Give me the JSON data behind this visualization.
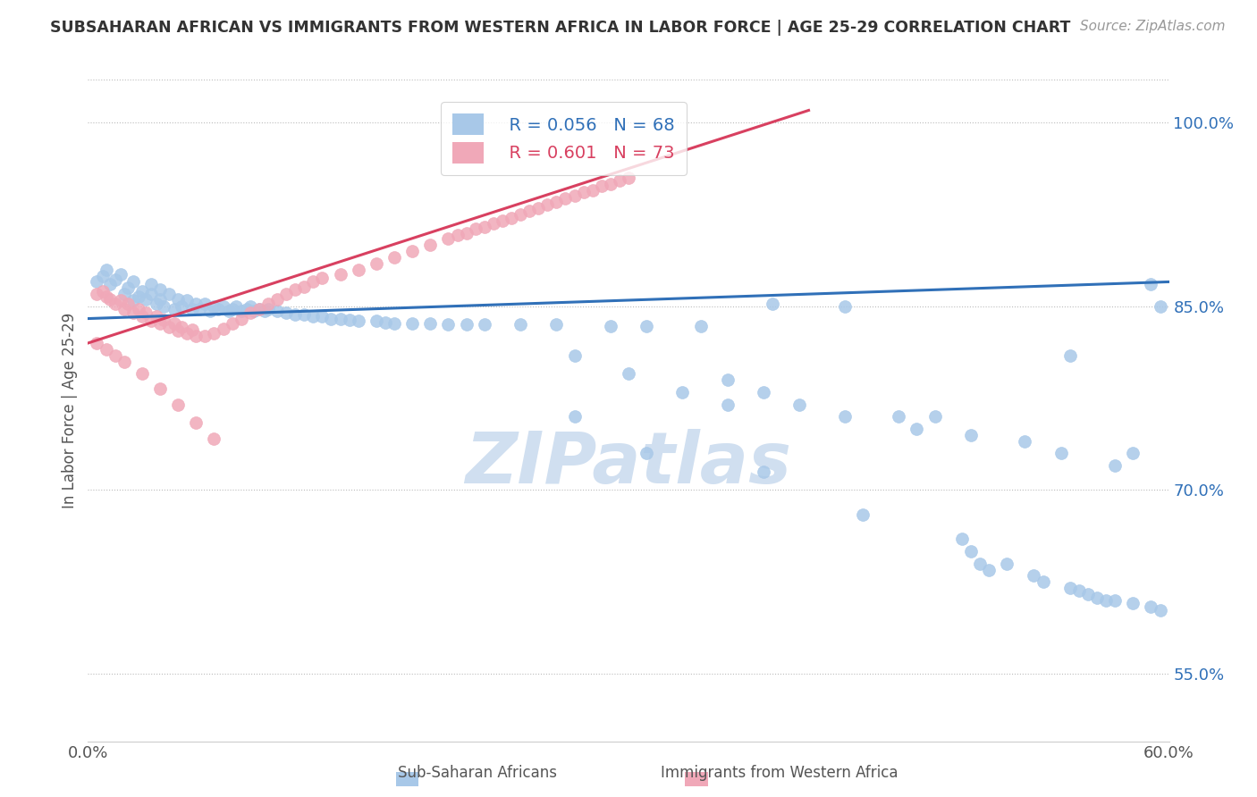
{
  "title": "SUBSAHARAN AFRICAN VS IMMIGRANTS FROM WESTERN AFRICA IN LABOR FORCE | AGE 25-29 CORRELATION CHART",
  "source": "Source: ZipAtlas.com",
  "ylabel": "In Labor Force | Age 25-29",
  "xlim": [
    0.0,
    0.6
  ],
  "ylim": [
    0.495,
    1.035
  ],
  "yticks": [
    0.55,
    0.7,
    0.85,
    1.0
  ],
  "ytick_labels": [
    "55.0%",
    "70.0%",
    "85.0%",
    "100.0%"
  ],
  "legend_blue_r": "R = 0.056",
  "legend_blue_n": "N = 68",
  "legend_pink_r": "R = 0.601",
  "legend_pink_n": "N = 73",
  "blue_color": "#a8c8e8",
  "pink_color": "#f0a8b8",
  "blue_line_color": "#3070b8",
  "pink_line_color": "#d84060",
  "watermark_color": "#d0dff0",
  "blue_scatter_x": [
    0.005,
    0.008,
    0.01,
    0.012,
    0.015,
    0.018,
    0.02,
    0.022,
    0.025,
    0.025,
    0.028,
    0.03,
    0.032,
    0.035,
    0.035,
    0.038,
    0.04,
    0.04,
    0.042,
    0.045,
    0.048,
    0.05,
    0.052,
    0.055,
    0.058,
    0.06,
    0.062,
    0.065,
    0.068,
    0.07,
    0.072,
    0.075,
    0.078,
    0.08,
    0.082,
    0.085,
    0.088,
    0.09,
    0.092,
    0.095,
    0.098,
    0.1,
    0.105,
    0.11,
    0.115,
    0.12,
    0.125,
    0.13,
    0.135,
    0.14,
    0.145,
    0.15,
    0.16,
    0.165,
    0.17,
    0.18,
    0.19,
    0.2,
    0.21,
    0.22,
    0.24,
    0.26,
    0.29,
    0.31,
    0.34,
    0.38,
    0.42,
    0.59
  ],
  "blue_scatter_y": [
    0.87,
    0.875,
    0.88,
    0.868,
    0.872,
    0.876,
    0.86,
    0.865,
    0.855,
    0.87,
    0.858,
    0.862,
    0.856,
    0.86,
    0.868,
    0.852,
    0.856,
    0.864,
    0.85,
    0.86,
    0.848,
    0.856,
    0.85,
    0.855,
    0.848,
    0.852,
    0.848,
    0.852,
    0.846,
    0.85,
    0.848,
    0.85,
    0.846,
    0.848,
    0.85,
    0.846,
    0.848,
    0.85,
    0.846,
    0.848,
    0.846,
    0.848,
    0.846,
    0.845,
    0.843,
    0.843,
    0.842,
    0.842,
    0.84,
    0.84,
    0.839,
    0.838,
    0.838,
    0.837,
    0.836,
    0.836,
    0.836,
    0.835,
    0.835,
    0.835,
    0.835,
    0.835,
    0.834,
    0.834,
    0.834,
    0.852,
    0.85,
    0.868
  ],
  "blue_scatter_x2": [
    0.27,
    0.3,
    0.33,
    0.355,
    0.355,
    0.375,
    0.395,
    0.42,
    0.45,
    0.46,
    0.47,
    0.49,
    0.52,
    0.54,
    0.545,
    0.57,
    0.58,
    0.595
  ],
  "blue_scatter_y2": [
    0.81,
    0.795,
    0.78,
    0.77,
    0.79,
    0.78,
    0.77,
    0.76,
    0.76,
    0.75,
    0.76,
    0.745,
    0.74,
    0.73,
    0.81,
    0.72,
    0.73,
    0.85
  ],
  "blue_scatter_x3": [
    0.27,
    0.31,
    0.375,
    0.43,
    0.485,
    0.49,
    0.495,
    0.5,
    0.51,
    0.525,
    0.53,
    0.545,
    0.55,
    0.555,
    0.56,
    0.565,
    0.57,
    0.58,
    0.59,
    0.595
  ],
  "blue_scatter_y3": [
    0.76,
    0.73,
    0.715,
    0.68,
    0.66,
    0.65,
    0.64,
    0.635,
    0.64,
    0.63,
    0.625,
    0.62,
    0.618,
    0.615,
    0.612,
    0.61,
    0.61,
    0.608,
    0.605,
    0.602
  ],
  "pink_scatter_x": [
    0.005,
    0.008,
    0.01,
    0.012,
    0.015,
    0.018,
    0.02,
    0.022,
    0.025,
    0.028,
    0.03,
    0.032,
    0.035,
    0.038,
    0.04,
    0.042,
    0.045,
    0.048,
    0.05,
    0.052,
    0.055,
    0.058,
    0.06,
    0.065,
    0.07,
    0.075,
    0.08,
    0.085,
    0.09,
    0.095,
    0.1,
    0.105,
    0.11,
    0.115,
    0.12,
    0.125,
    0.13,
    0.14,
    0.15,
    0.16,
    0.17,
    0.18,
    0.19,
    0.2,
    0.205,
    0.21,
    0.215,
    0.22,
    0.225,
    0.23,
    0.235,
    0.24,
    0.245,
    0.25,
    0.255,
    0.26,
    0.265,
    0.27,
    0.275,
    0.28,
    0.285,
    0.29,
    0.295,
    0.3,
    0.005,
    0.01,
    0.015,
    0.02,
    0.03,
    0.04,
    0.05,
    0.06,
    0.07
  ],
  "pink_scatter_y": [
    0.86,
    0.862,
    0.858,
    0.856,
    0.852,
    0.855,
    0.848,
    0.852,
    0.845,
    0.848,
    0.842,
    0.845,
    0.838,
    0.842,
    0.836,
    0.839,
    0.833,
    0.836,
    0.83,
    0.833,
    0.828,
    0.831,
    0.826,
    0.826,
    0.828,
    0.832,
    0.836,
    0.84,
    0.845,
    0.848,
    0.852,
    0.856,
    0.86,
    0.864,
    0.866,
    0.87,
    0.873,
    0.876,
    0.88,
    0.885,
    0.89,
    0.895,
    0.9,
    0.905,
    0.908,
    0.91,
    0.913,
    0.915,
    0.918,
    0.92,
    0.922,
    0.925,
    0.928,
    0.93,
    0.933,
    0.935,
    0.938,
    0.94,
    0.943,
    0.945,
    0.948,
    0.95,
    0.953,
    0.955,
    0.82,
    0.815,
    0.81,
    0.805,
    0.795,
    0.783,
    0.77,
    0.755,
    0.742
  ],
  "blue_trend_x": [
    0.0,
    0.6
  ],
  "blue_trend_y": [
    0.84,
    0.87
  ],
  "pink_trend_x": [
    0.0,
    0.4
  ],
  "pink_trend_y": [
    0.82,
    1.01
  ]
}
